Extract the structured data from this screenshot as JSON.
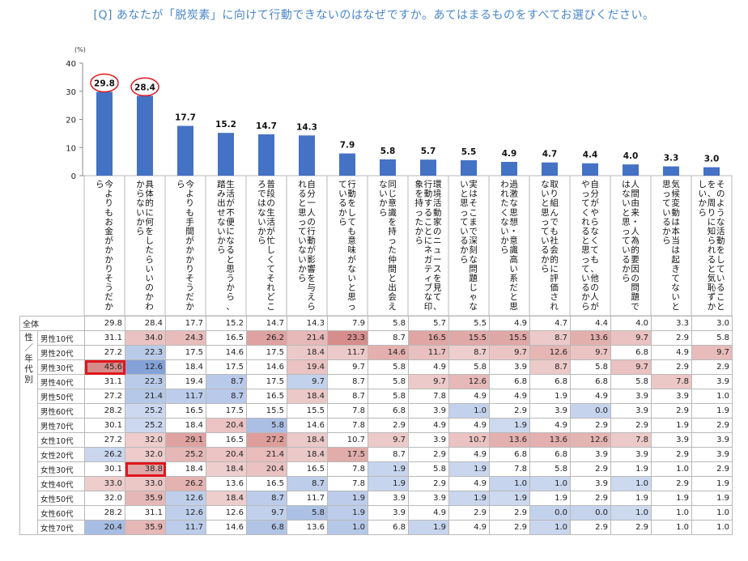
{
  "question": "[Q] あなたが「脱炭素」に向けて行動できないのはなぜですか。あてはまるものをすべてお選びください。",
  "chart_data": {
    "type": "bar",
    "unit_label": "(%)",
    "ylim": [
      0,
      40
    ],
    "yticks": [
      0,
      10,
      20,
      30,
      40
    ],
    "grid": false,
    "bar_color": "#4472c4",
    "highlight_color": "#e0161d",
    "circled_values": [
      0,
      1
    ],
    "categories": [
      "今よりもお金がかかりそうだから",
      "具体的に何をしたらいいのかわからないから",
      "今よりも手間がかかりそうだから",
      "生活が不便になると思うから、踏み出せないから",
      "普段の生活が忙しくてそれどころではないから",
      "自分一人の行動が影響を与えられると思っていないから",
      "行動をしても意味がないと思っているから",
      "同じ意識を持った仲間と出会えないから",
      "環境活動家のニュースを見て、行動することにネガティブな印象を持ったから",
      "実はそこまで深刻な問題じゃないと思っているから",
      "過激な思想・意識高い系だと思われたくないから",
      "取り組んでも社会的に評価されないと思っているから",
      "自分がやらなくても、他の人がやってくれると思っているから",
      "人間由来・人為的要因の問題ではないと思っているから",
      "気候変動は本当は起きてないと思っているから",
      "そのような活動をしていることを、周りに知られると気恥ずかしいから"
    ],
    "values": [
      29.8,
      28.4,
      17.7,
      15.2,
      14.7,
      14.3,
      7.9,
      5.8,
      5.7,
      5.5,
      4.9,
      4.7,
      4.4,
      4.0,
      3.3,
      3.0
    ]
  },
  "table": {
    "total_label": "全体",
    "group_label": "性／年代別",
    "rows": [
      {
        "label": "男性10代",
        "values": [
          31.1,
          34.0,
          24.3,
          16.5,
          26.2,
          21.4,
          23.3,
          8.7,
          16.5,
          15.5,
          15.5,
          8.7,
          13.6,
          9.7,
          2.9,
          5.8
        ]
      },
      {
        "label": "男性20代",
        "values": [
          27.2,
          22.3,
          17.5,
          14.6,
          17.5,
          18.4,
          11.7,
          14.6,
          11.7,
          8.7,
          9.7,
          12.6,
          9.7,
          6.8,
          4.9,
          9.7
        ]
      },
      {
        "label": "男性30代",
        "values": [
          45.6,
          12.6,
          18.4,
          17.5,
          14.6,
          19.4,
          9.7,
          5.8,
          4.9,
          5.8,
          3.9,
          8.7,
          5.8,
          9.7,
          2.9,
          2.9
        ]
      },
      {
        "label": "男性40代",
        "values": [
          31.1,
          22.3,
          19.4,
          8.7,
          17.5,
          9.7,
          8.7,
          5.8,
          9.7,
          12.6,
          6.8,
          6.8,
          6.8,
          5.8,
          7.8,
          3.9
        ]
      },
      {
        "label": "男性50代",
        "values": [
          27.2,
          21.4,
          11.7,
          8.7,
          16.5,
          18.4,
          8.7,
          5.8,
          7.8,
          4.9,
          4.9,
          1.9,
          4.9,
          3.9,
          3.9,
          1.0
        ]
      },
      {
        "label": "男性60代",
        "values": [
          28.2,
          25.2,
          16.5,
          17.5,
          15.5,
          15.5,
          7.8,
          6.8,
          3.9,
          1.0,
          2.9,
          3.9,
          0.0,
          3.9,
          2.9,
          1.9
        ]
      },
      {
        "label": "男性70代",
        "values": [
          30.1,
          25.2,
          18.4,
          20.4,
          5.8,
          14.6,
          7.8,
          2.9,
          4.9,
          4.9,
          1.9,
          4.9,
          2.9,
          2.9,
          1.9,
          2.9
        ]
      },
      {
        "label": "女性10代",
        "values": [
          27.2,
          32.0,
          29.1,
          16.5,
          27.2,
          18.4,
          10.7,
          9.7,
          3.9,
          10.7,
          13.6,
          13.6,
          12.6,
          7.8,
          3.9,
          3.9
        ]
      },
      {
        "label": "女性20代",
        "values": [
          26.2,
          32.0,
          25.2,
          20.4,
          21.4,
          18.4,
          17.5,
          8.7,
          2.9,
          4.9,
          6.8,
          6.8,
          3.9,
          3.9,
          2.9,
          3.9
        ]
      },
      {
        "label": "女性30代",
        "values": [
          30.1,
          38.8,
          18.4,
          18.4,
          20.4,
          16.5,
          7.8,
          1.9,
          5.8,
          1.9,
          7.8,
          5.8,
          2.9,
          1.9,
          1.0,
          2.9
        ]
      },
      {
        "label": "女性40代",
        "values": [
          33.0,
          33.0,
          26.2,
          13.6,
          16.5,
          8.7,
          7.8,
          1.9,
          2.9,
          4.9,
          1.0,
          1.0,
          3.9,
          1.0,
          2.9,
          1.9
        ]
      },
      {
        "label": "女性50代",
        "values": [
          32.0,
          35.9,
          12.6,
          18.4,
          8.7,
          11.7,
          1.9,
          3.9,
          3.9,
          1.9,
          1.9,
          1.9,
          2.9,
          1.9,
          1.9,
          1.9
        ]
      },
      {
        "label": "女性60代",
        "values": [
          28.2,
          31.1,
          12.6,
          12.6,
          9.7,
          5.8,
          1.9,
          3.9,
          4.9,
          2.9,
          2.9,
          0.0,
          0.0,
          1.0,
          1.0,
          1.0
        ]
      },
      {
        "label": "女性70代",
        "values": [
          20.4,
          35.9,
          11.7,
          14.6,
          6.8,
          13.6,
          1.0,
          6.8,
          1.9,
          4.9,
          2.9,
          1.0,
          2.9,
          2.9,
          1.0,
          1.0
        ]
      }
    ],
    "boxed_cells": [
      [
        2,
        0
      ],
      [
        9,
        1
      ]
    ],
    "colors": {
      "high": "#c0504d",
      "low": "#4472c4"
    }
  }
}
